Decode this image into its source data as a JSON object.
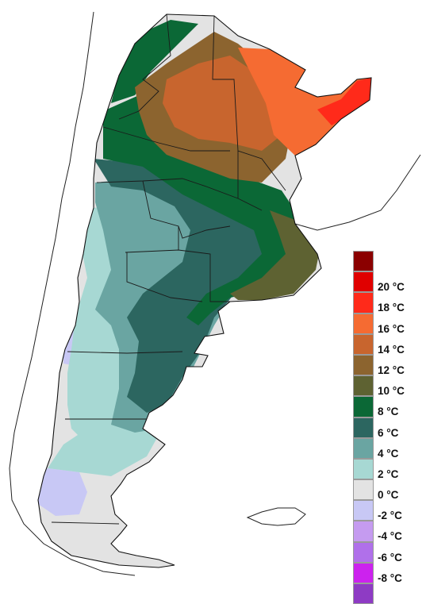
{
  "legend": {
    "items": [
      {
        "label": "",
        "color": "#8b0000"
      },
      {
        "label": "20 °C",
        "color": "#e00000"
      },
      {
        "label": "18 °C",
        "color": "#ff2a1a"
      },
      {
        "label": "16 °C",
        "color": "#f56b32"
      },
      {
        "label": "14 °C",
        "color": "#c8652e"
      },
      {
        "label": "12 °C",
        "color": "#8c642f"
      },
      {
        "label": "10 °C",
        "color": "#5e6232"
      },
      {
        "label": "8 °C",
        "color": "#0b6836"
      },
      {
        "label": "6 °C",
        "color": "#2c6660"
      },
      {
        "label": "4 °C",
        "color": "#6aa5a2"
      },
      {
        "label": "2 °C",
        "color": "#a7d8d3"
      },
      {
        "label": "0 °C",
        "color": "#e3e3e3"
      },
      {
        "label": "-2 °C",
        "color": "#c8c8f5"
      },
      {
        "label": "-4 °C",
        "color": "#c59bf0"
      },
      {
        "label": "-6 °C",
        "color": "#b070ea"
      },
      {
        "label": "-8 °C",
        "color": "#cc22ee"
      },
      {
        "label": "",
        "color": "#8e3bc4"
      }
    ]
  }
}
